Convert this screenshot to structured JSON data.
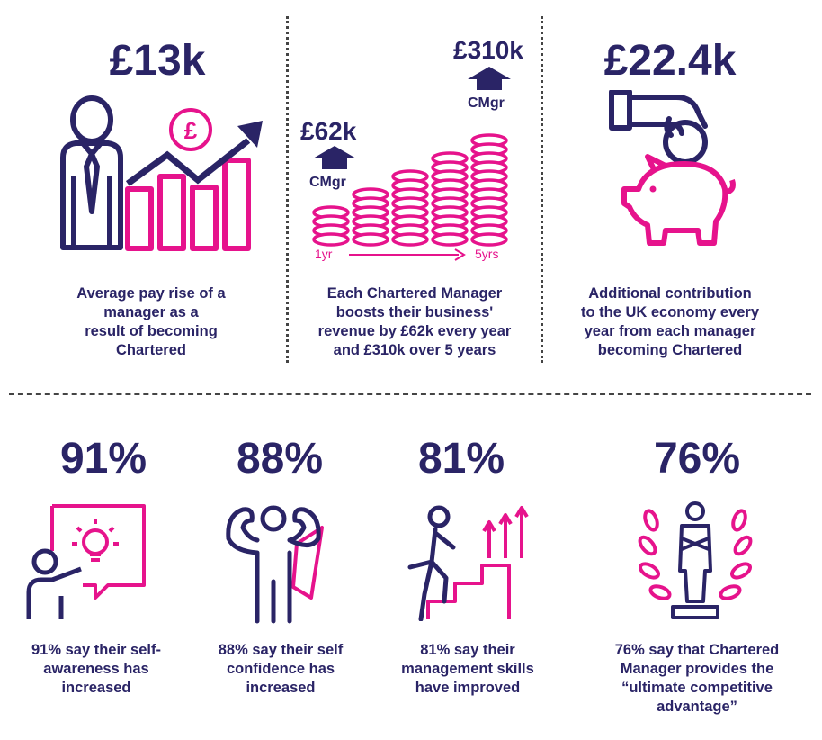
{
  "colors": {
    "navy": "#2a2466",
    "magenta": "#e6138c"
  },
  "top": [
    {
      "figure": "£13k",
      "caption_lines": [
        "Average pay rise of a",
        "manager as a",
        "result of becoming",
        "Chartered"
      ]
    },
    {
      "figure": "",
      "caption_lines": [
        "Each Chartered Manager",
        "boosts their business'",
        "revenue by £62k every year",
        "and £310k over 5 years"
      ]
    },
    {
      "figure": "£22.4k",
      "caption_lines": [
        "Additional contribution",
        "to the UK economy every",
        "year from each manager",
        "becoming Chartered"
      ]
    }
  ],
  "revenue_graphic": {
    "left_value": "£62k",
    "left_tag": "CMgr",
    "right_value": "£310k",
    "right_tag": "CMgr",
    "start_label": "1yr",
    "end_label": "5yrs"
  },
  "icons": {
    "manager": "manager-icon",
    "growth": "growth-chart-icon",
    "pound": "pound-coin-icon",
    "coins": "coin-stack-icon",
    "hand": "hand-coin-icon",
    "piggy": "piggy-bank-icon",
    "teacher": "lightbulb-idea-icon",
    "strong": "strong-person-icon",
    "stairs": "climbing-stairs-icon",
    "laurel": "laurel-winner-icon"
  },
  "bottom": [
    {
      "figure": "91%",
      "caption_lines": [
        "91% say their self-",
        "awareness has",
        "increased"
      ]
    },
    {
      "figure": "88%",
      "caption_lines": [
        "88% say their self",
        "confidence has",
        "increased"
      ]
    },
    {
      "figure": "81%",
      "caption_lines": [
        "81% say their",
        "management skills",
        "have improved"
      ]
    },
    {
      "figure": "76%",
      "caption_lines": [
        "76% say that Chartered",
        "Manager provides the",
        "“ultimate competitive",
        "advantage”"
      ]
    }
  ]
}
